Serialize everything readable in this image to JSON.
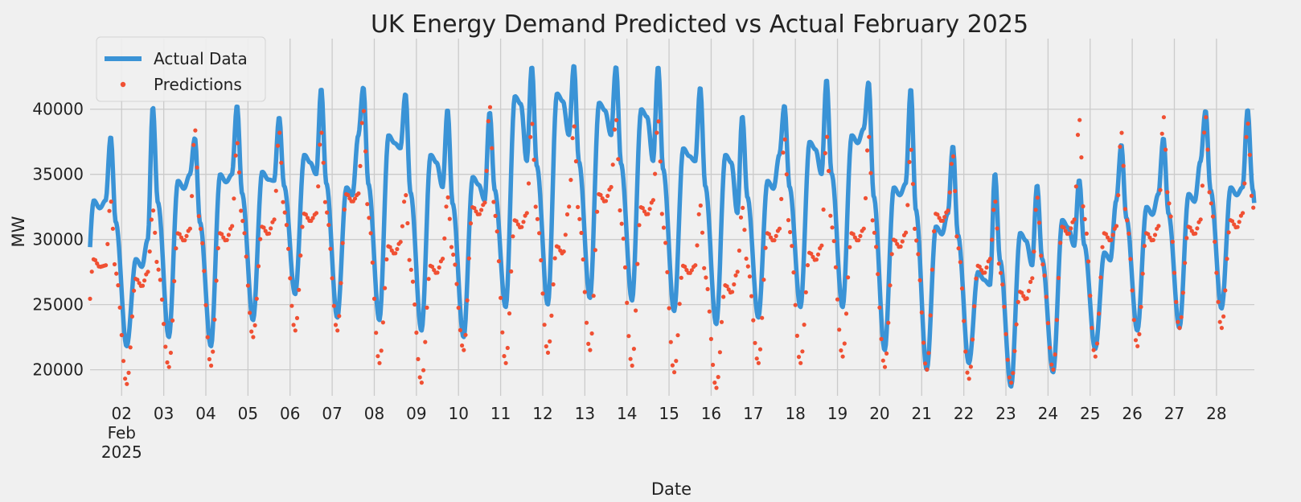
{
  "chart_data": {
    "type": "line",
    "title": "UK Energy Demand Predicted vs Actual February 2025",
    "xlabel": "Date",
    "ylabel": "MW",
    "ylim": [
      18000,
      44800
    ],
    "grid": true,
    "legend_position": "top-left",
    "x_range_days": [
      1.25,
      28.9
    ],
    "y_ticks": [
      20000,
      25000,
      30000,
      35000,
      40000
    ],
    "x_ticks": [
      {
        "day": 2,
        "label": "02",
        "sub1": "Feb",
        "sub2": "2025"
      },
      {
        "day": 3,
        "label": "03"
      },
      {
        "day": 4,
        "label": "04"
      },
      {
        "day": 5,
        "label": "05"
      },
      {
        "day": 6,
        "label": "06"
      },
      {
        "day": 7,
        "label": "07"
      },
      {
        "day": 8,
        "label": "08"
      },
      {
        "day": 9,
        "label": "09"
      },
      {
        "day": 10,
        "label": "10"
      },
      {
        "day": 11,
        "label": "11"
      },
      {
        "day": 12,
        "label": "12"
      },
      {
        "day": 13,
        "label": "13"
      },
      {
        "day": 14,
        "label": "14"
      },
      {
        "day": 15,
        "label": "15"
      },
      {
        "day": 16,
        "label": "16"
      },
      {
        "day": 17,
        "label": "17"
      },
      {
        "day": 18,
        "label": "18"
      },
      {
        "day": 19,
        "label": "19"
      },
      {
        "day": 20,
        "label": "20"
      },
      {
        "day": 21,
        "label": "21"
      },
      {
        "day": 22,
        "label": "22"
      },
      {
        "day": 23,
        "label": "23"
      },
      {
        "day": 24,
        "label": "24"
      },
      {
        "day": 25,
        "label": "25"
      },
      {
        "day": 26,
        "label": "26"
      },
      {
        "day": 27,
        "label": "27"
      },
      {
        "day": 28,
        "label": "28"
      }
    ],
    "series": [
      {
        "name": "Actual Data",
        "style": "line",
        "color": "#3a93d6",
        "daily": [
          {
            "day": 1,
            "min": 23000,
            "am": 33000,
            "peak": 37900,
            "pm": 33000
          },
          {
            "day": 2,
            "min": 21800,
            "am": 28500,
            "peak": 40200,
            "pm": 30000
          },
          {
            "day": 3,
            "min": 22500,
            "am": 34500,
            "peak": 37800,
            "pm": 35000
          },
          {
            "day": 4,
            "min": 21800,
            "am": 35000,
            "peak": 40300,
            "pm": 35000
          },
          {
            "day": 5,
            "min": 23800,
            "am": 35200,
            "peak": 39400,
            "pm": 34500
          },
          {
            "day": 6,
            "min": 25800,
            "am": 36500,
            "peak": 41600,
            "pm": 35000
          },
          {
            "day": 7,
            "min": 24000,
            "am": 34000,
            "peak": 41700,
            "pm": 38000
          },
          {
            "day": 8,
            "min": 23800,
            "am": 38000,
            "peak": 41200,
            "pm": 37000
          },
          {
            "day": 9,
            "min": 23000,
            "am": 36500,
            "peak": 40000,
            "pm": 34000
          },
          {
            "day": 10,
            "min": 22500,
            "am": 34800,
            "peak": 39800,
            "pm": 33000
          },
          {
            "day": 11,
            "min": 24800,
            "am": 41000,
            "peak": 43300,
            "pm": 36000
          },
          {
            "day": 12,
            "min": 25000,
            "am": 41200,
            "peak": 43400,
            "pm": 38000
          },
          {
            "day": 13,
            "min": 25500,
            "am": 40500,
            "peak": 43300,
            "pm": 38000
          },
          {
            "day": 14,
            "min": 25300,
            "am": 40000,
            "peak": 43300,
            "pm": 36000
          },
          {
            "day": 15,
            "min": 24500,
            "am": 37000,
            "peak": 41700,
            "pm": 36000
          },
          {
            "day": 16,
            "min": 23500,
            "am": 36500,
            "peak": 39500,
            "pm": 32000
          },
          {
            "day": 17,
            "min": 24000,
            "am": 34500,
            "peak": 40300,
            "pm": 36500
          },
          {
            "day": 18,
            "min": 24800,
            "am": 37500,
            "peak": 42300,
            "pm": 35000
          },
          {
            "day": 19,
            "min": 24800,
            "am": 38000,
            "peak": 42100,
            "pm": 38500
          },
          {
            "day": 20,
            "min": 21500,
            "am": 34000,
            "peak": 41600,
            "pm": 34300
          },
          {
            "day": 21,
            "min": 20000,
            "am": 31000,
            "peak": 37200,
            "pm": 32000
          },
          {
            "day": 22,
            "min": 20500,
            "am": 27500,
            "peak": 35100,
            "pm": 26500
          },
          {
            "day": 23,
            "min": 18700,
            "am": 30500,
            "peak": 34200,
            "pm": 28000
          },
          {
            "day": 24,
            "min": 19800,
            "am": 31500,
            "peak": 34600,
            "pm": 29500
          },
          {
            "day": 25,
            "min": 21600,
            "am": 29000,
            "peak": 37300,
            "pm": 33000
          },
          {
            "day": 26,
            "min": 23000,
            "am": 32500,
            "peak": 37800,
            "pm": 33500
          },
          {
            "day": 27,
            "min": 23200,
            "am": 33500,
            "peak": 39900,
            "pm": 36000
          },
          {
            "day": 28,
            "min": 24700,
            "am": 34000,
            "peak": 40000,
            "pm": 34000
          }
        ]
      },
      {
        "name": "Predictions",
        "style": "scatter",
        "color": "#f05033",
        "daily": [
          {
            "day": 1,
            "min": 20000,
            "am": 28500,
            "peak": 33000,
            "pm": 28000
          },
          {
            "day": 2,
            "min": 18900,
            "am": 27000,
            "peak": 32300,
            "pm": 27500
          },
          {
            "day": 3,
            "min": 20200,
            "am": 30500,
            "peak": 38500,
            "pm": 30800
          },
          {
            "day": 4,
            "min": 20300,
            "am": 30500,
            "peak": 37500,
            "pm": 31000
          },
          {
            "day": 5,
            "min": 22500,
            "am": 31000,
            "peak": 38300,
            "pm": 31500
          },
          {
            "day": 6,
            "min": 23000,
            "am": 32000,
            "peak": 38300,
            "pm": 32000
          },
          {
            "day": 7,
            "min": 23000,
            "am": 33500,
            "peak": 40000,
            "pm": 33500
          },
          {
            "day": 8,
            "min": 20500,
            "am": 29500,
            "peak": 33500,
            "pm": 29800
          },
          {
            "day": 9,
            "min": 19000,
            "am": 28000,
            "peak": 33300,
            "pm": 28500
          },
          {
            "day": 10,
            "min": 21500,
            "am": 32500,
            "peak": 40300,
            "pm": 32800
          },
          {
            "day": 11,
            "min": 20500,
            "am": 31500,
            "peak": 39000,
            "pm": 32000
          },
          {
            "day": 12,
            "min": 21300,
            "am": 29500,
            "peak": 38800,
            "pm": 32500
          },
          {
            "day": 13,
            "min": 21500,
            "am": 33500,
            "peak": 39300,
            "pm": 34000
          },
          {
            "day": 14,
            "min": 20300,
            "am": 32500,
            "peak": 39200,
            "pm": 33000
          },
          {
            "day": 15,
            "min": 19800,
            "am": 28000,
            "peak": 32700,
            "pm": 28000
          },
          {
            "day": 16,
            "min": 18600,
            "am": 26500,
            "peak": 32500,
            "pm": 27500
          },
          {
            "day": 17,
            "min": 20500,
            "am": 30500,
            "peak": 37800,
            "pm": 30800
          },
          {
            "day": 18,
            "min": 20500,
            "am": 29000,
            "peak": 38000,
            "pm": 29500
          },
          {
            "day": 19,
            "min": 21000,
            "am": 30500,
            "peak": 38000,
            "pm": 30800
          },
          {
            "day": 20,
            "min": 20200,
            "am": 30000,
            "peak": 37000,
            "pm": 30500
          },
          {
            "day": 21,
            "min": 20000,
            "am": 32000,
            "peak": 36500,
            "pm": 32200
          },
          {
            "day": 22,
            "min": 19300,
            "am": 28000,
            "peak": 33000,
            "pm": 28500
          },
          {
            "day": 23,
            "min": 19000,
            "am": 26000,
            "peak": 33300,
            "pm": 27000
          },
          {
            "day": 24,
            "min": 20000,
            "am": 31000,
            "peak": 39300,
            "pm": 31500
          },
          {
            "day": 25,
            "min": 21000,
            "am": 30500,
            "peak": 38300,
            "pm": 31000
          },
          {
            "day": 26,
            "min": 21800,
            "am": 30500,
            "peak": 39500,
            "pm": 31000
          },
          {
            "day": 27,
            "min": 23200,
            "am": 31000,
            "peak": 39500,
            "pm": 31500
          },
          {
            "day": 28,
            "min": 23200,
            "am": 31500,
            "peak": 39000,
            "pm": 32000
          }
        ]
      }
    ]
  }
}
